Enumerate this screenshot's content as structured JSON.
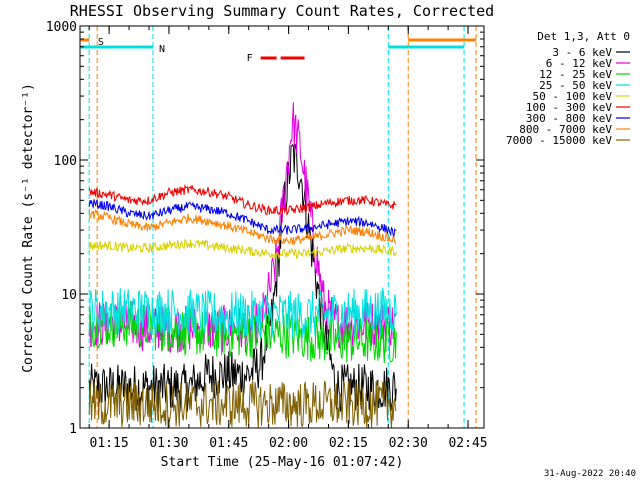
{
  "chart_data": {
    "type": "line",
    "title": "RHESSI Observing Summary Count Rates, Corrected",
    "xlabel": "Start Time (25-May-16 01:07:42)",
    "ylabel": "Corrected Count Rate (s⁻¹ detector⁻¹)",
    "date_stamp": "31-Aug-2022 20:40",
    "y_scale": "log",
    "ylim": [
      1,
      1000
    ],
    "xlim": [
      "01:07:42",
      "02:49:00"
    ],
    "x_ticks": [
      "01:15",
      "01:30",
      "01:45",
      "02:00",
      "02:15",
      "02:30",
      "02:45"
    ],
    "y_ticks": [
      "1",
      "10",
      "100",
      "1000"
    ],
    "legend_header": "Det 1,3, Att 0",
    "legend_placement": "right",
    "series": [
      {
        "name": "3 - 6 keV",
        "color": "#000000",
        "x": [
          "01:10",
          "01:15",
          "01:20",
          "01:25",
          "01:30",
          "01:35",
          "01:40",
          "01:45",
          "01:50",
          "01:53",
          "01:56",
          "01:59",
          "02:01",
          "02:03",
          "02:06",
          "02:09",
          "02:12",
          "02:15",
          "02:20",
          "02:25",
          "02:27"
        ],
        "y": [
          2.0,
          2.0,
          2.0,
          2.0,
          2.0,
          2.0,
          2.5,
          2.5,
          2.5,
          3.0,
          7.0,
          50,
          110,
          80,
          20,
          5,
          2.0,
          2.0,
          2.0,
          2.0,
          2.0
        ]
      },
      {
        "name": "6 - 12 keV",
        "color": "#e000e0",
        "x": [
          "01:10",
          "01:15",
          "01:20",
          "01:25",
          "01:30",
          "01:35",
          "01:40",
          "01:45",
          "01:50",
          "01:53",
          "01:55",
          "01:57",
          "01:59",
          "02:01",
          "02:03",
          "02:06",
          "02:09",
          "02:12",
          "02:15",
          "02:20",
          "02:25",
          "02:27"
        ],
        "y": [
          6,
          6,
          6,
          5.5,
          5.5,
          5.5,
          5.5,
          5.5,
          5.5,
          6,
          10,
          18,
          60,
          200,
          120,
          30,
          8,
          6,
          6,
          6,
          6,
          6
        ]
      },
      {
        "name": "12 - 25 keV",
        "color": "#00d800",
        "x": [
          "01:10",
          "01:20",
          "01:30",
          "01:40",
          "01:50",
          "02:00",
          "02:10",
          "02:20",
          "02:27"
        ],
        "y": [
          6,
          6,
          5.5,
          5,
          5,
          5,
          4.5,
          4.5,
          4.5
        ]
      },
      {
        "name": "25 - 50 keV",
        "color": "#00e0e0",
        "x": [
          "01:10",
          "01:20",
          "01:30",
          "01:40",
          "01:50",
          "02:00",
          "02:10",
          "02:20",
          "02:27"
        ],
        "y": [
          7.5,
          7.5,
          7.5,
          7,
          7,
          7,
          7,
          7.5,
          7.5
        ]
      },
      {
        "name": "50 - 100 keV",
        "color": "#d8d000",
        "x": [
          "01:10",
          "01:15",
          "01:20",
          "01:25",
          "01:30",
          "01:35",
          "01:40",
          "01:45",
          "01:50",
          "01:55",
          "02:00",
          "02:05",
          "02:10",
          "02:15",
          "02:20",
          "02:25",
          "02:27"
        ],
        "y": [
          23,
          23,
          22,
          22,
          23,
          24,
          23,
          22,
          21,
          20,
          20,
          20,
          21,
          22,
          22,
          21,
          21
        ]
      },
      {
        "name": "100 - 300 keV",
        "color": "#f00000",
        "x": [
          "01:10",
          "01:15",
          "01:20",
          "01:25",
          "01:30",
          "01:35",
          "01:40",
          "01:45",
          "01:50",
          "01:55",
          "02:00",
          "02:05",
          "02:10",
          "02:15",
          "02:20",
          "02:25",
          "02:27"
        ],
        "y": [
          58,
          55,
          50,
          50,
          57,
          60,
          58,
          53,
          46,
          42,
          42,
          44,
          48,
          50,
          50,
          46,
          46
        ]
      },
      {
        "name": "300 - 800 keV",
        "color": "#0000f0",
        "x": [
          "01:10",
          "01:15",
          "01:20",
          "01:25",
          "01:30",
          "01:35",
          "01:40",
          "01:45",
          "01:50",
          "01:55",
          "02:00",
          "02:05",
          "02:10",
          "02:15",
          "02:20",
          "02:25",
          "02:27"
        ],
        "y": [
          48,
          45,
          40,
          38,
          42,
          45,
          43,
          40,
          35,
          30,
          30,
          31,
          33,
          35,
          34,
          30,
          28
        ]
      },
      {
        "name": "800 - 7000 keV",
        "color": "#ff8000",
        "x": [
          "01:10",
          "01:15",
          "01:20",
          "01:25",
          "01:30",
          "01:35",
          "01:40",
          "01:45",
          "01:50",
          "01:55",
          "02:00",
          "02:05",
          "02:10",
          "02:15",
          "02:20",
          "02:25",
          "02:27"
        ],
        "y": [
          40,
          37,
          33,
          31,
          34,
          37,
          35,
          32,
          29,
          26,
          25,
          26,
          28,
          30,
          29,
          26,
          25
        ]
      },
      {
        "name": "7000 - 15000 keV",
        "color": "#806000",
        "x": [
          "01:10",
          "01:20",
          "01:30",
          "01:40",
          "01:50",
          "02:00",
          "02:10",
          "02:20",
          "02:27"
        ],
        "y": [
          1.5,
          1.5,
          1.5,
          1.5,
          1.5,
          1.5,
          1.5,
          1.5,
          1.5
        ]
      }
    ],
    "annotations": {
      "night_label": "N",
      "saa_label": "S",
      "flare_label": "F",
      "saa_color": "#ff8000",
      "night_color": "#00e0e0",
      "flare_color": "#f00000",
      "saa_intervals": [
        [
          "01:07:42",
          "01:10"
        ],
        [
          "02:30",
          "02:47"
        ]
      ],
      "night_intervals": [
        [
          "01:07:42",
          "01:26"
        ],
        [
          "02:25",
          "02:44"
        ]
      ],
      "flare_intervals": [
        [
          "01:53",
          "01:57"
        ],
        [
          "01:58",
          "02:04"
        ]
      ],
      "night_boundaries": [
        "01:10",
        "01:26",
        "02:25",
        "02:44"
      ],
      "saa_boundaries": [
        "01:12",
        "02:30",
        "02:47"
      ]
    }
  }
}
